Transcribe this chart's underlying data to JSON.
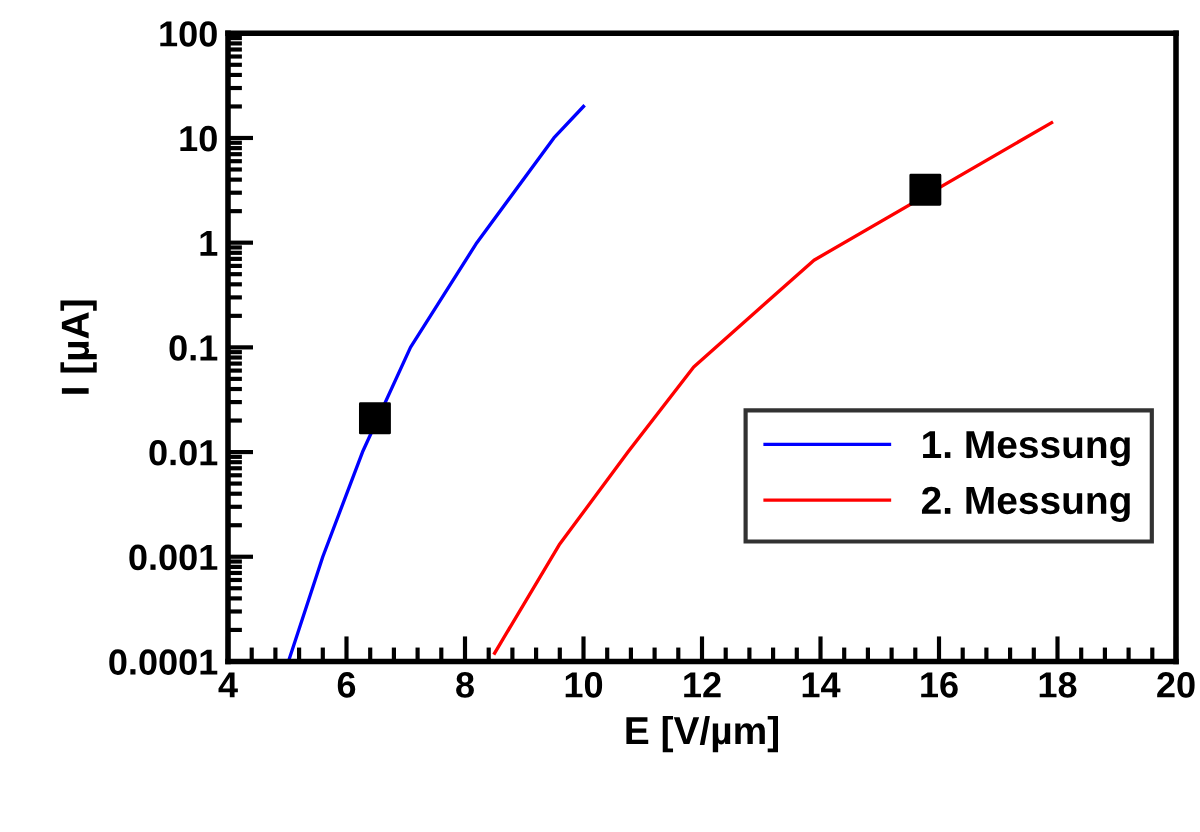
{
  "chart_data": {
    "type": "line",
    "xlabel": "E [V/µm]",
    "ylabel": "I [µA]",
    "log": "y",
    "xlim": [
      4,
      20
    ],
    "xticks": [
      4,
      6,
      8,
      10,
      12,
      14,
      16,
      18,
      20
    ],
    "ylim": [
      0.0001,
      100
    ],
    "yticks": [
      0.0001,
      0.001,
      0.01,
      0.1,
      1,
      10,
      100
    ],
    "grid": false,
    "legend": "bottom right",
    "line_style": "solid",
    "marker": "none",
    "series": [
      {
        "name": "1. Messung",
        "color": "#0000ff",
        "x": [
          5.02,
          5.6,
          6.27,
          7.08,
          8.2,
          9.5,
          10.0
        ],
        "values": [
          0.0001,
          0.001,
          0.01,
          0.1,
          1,
          10,
          20
        ]
      },
      {
        "name": "2. Messung",
        "color": "#ff0000",
        "x": [
          8.5,
          9.59,
          10.75,
          11.86,
          13.89,
          17.9
        ],
        "values": [
          0.00012,
          0.0013,
          0.01,
          0.065,
          0.68,
          14
        ]
      },
      {
        "type": "scatter",
        "marker": "square",
        "color": "#000000",
        "x": [
          6.48,
          15.77
        ],
        "values": [
          0.021,
          3.2
        ]
      }
    ]
  }
}
